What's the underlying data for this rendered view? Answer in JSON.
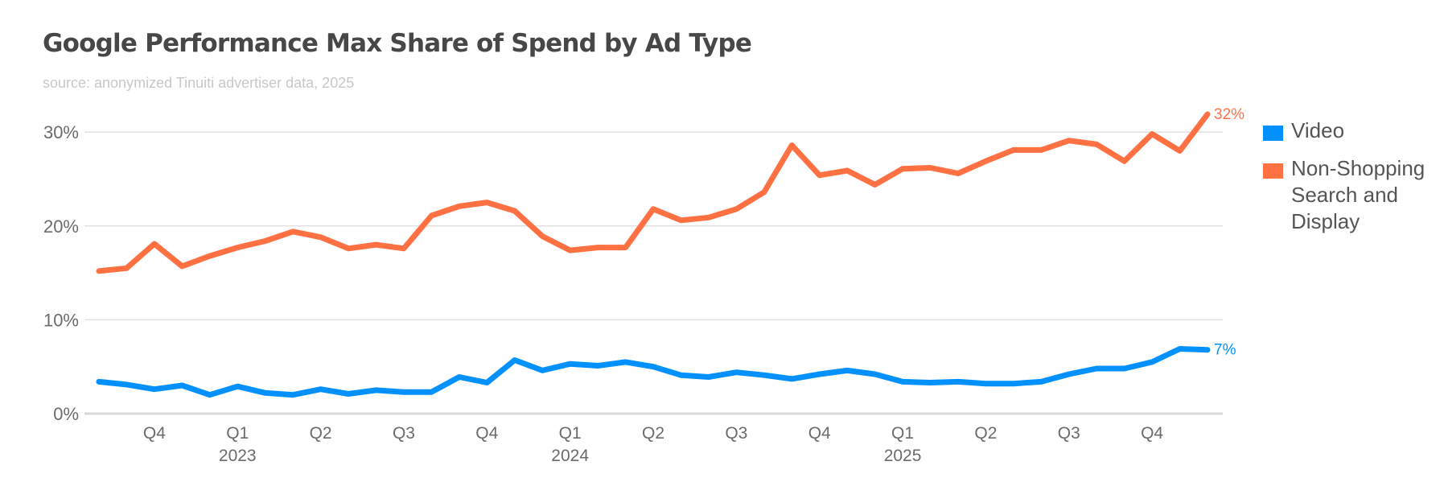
{
  "chart_data": {
    "type": "line",
    "title": "Google Performance Max Share of Spend by Ad Type",
    "subtitle": "source: anonymized Tinuiti advertiser data, 2025",
    "xlabel": "",
    "ylabel": "",
    "ylim": [
      0,
      32
    ],
    "yticks": [
      {
        "value": 0,
        "label": "0%"
      },
      {
        "value": 10,
        "label": "10%"
      },
      {
        "value": 20,
        "label": "20%"
      },
      {
        "value": 30,
        "label": "30%"
      }
    ],
    "grid": true,
    "legend_position": "right",
    "x_tick_labels": [
      {
        "index": 2,
        "quarter": "Q4",
        "year": ""
      },
      {
        "index": 5,
        "quarter": "Q1",
        "year": "2023"
      },
      {
        "index": 8,
        "quarter": "Q2",
        "year": ""
      },
      {
        "index": 11,
        "quarter": "Q3",
        "year": ""
      },
      {
        "index": 14,
        "quarter": "Q4",
        "year": ""
      },
      {
        "index": 17,
        "quarter": "Q1",
        "year": "2024"
      },
      {
        "index": 20,
        "quarter": "Q2",
        "year": ""
      },
      {
        "index": 23,
        "quarter": "Q3",
        "year": ""
      },
      {
        "index": 26,
        "quarter": "Q4",
        "year": ""
      },
      {
        "index": 29,
        "quarter": "Q1",
        "year": "2025"
      },
      {
        "index": 32,
        "quarter": "Q2",
        "year": ""
      },
      {
        "index": 35,
        "quarter": "Q3",
        "year": ""
      },
      {
        "index": 38,
        "quarter": "Q4",
        "year": ""
      }
    ],
    "series": [
      {
        "name": "Video",
        "color": "#0091FF",
        "end_label": "7%",
        "values": [
          3.4,
          3.1,
          2.6,
          3.0,
          2.0,
          2.9,
          2.2,
          2.0,
          2.6,
          2.1,
          2.5,
          2.3,
          2.3,
          3.9,
          3.3,
          5.7,
          4.6,
          5.3,
          5.1,
          5.5,
          5.0,
          4.1,
          3.9,
          4.4,
          4.1,
          3.7,
          4.2,
          4.6,
          4.2,
          3.4,
          3.3,
          3.4,
          3.2,
          3.2,
          3.4,
          4.2,
          4.8,
          4.8,
          5.5,
          6.9,
          6.8
        ]
      },
      {
        "name": "Non-Shopping Search and Display",
        "color": "#FF7043",
        "end_label": "32%",
        "values": [
          15.2,
          15.5,
          18.1,
          15.7,
          16.8,
          17.7,
          18.4,
          19.4,
          18.8,
          17.6,
          18.0,
          17.6,
          21.1,
          22.1,
          22.5,
          21.6,
          18.9,
          17.4,
          17.7,
          17.7,
          21.8,
          20.6,
          20.9,
          21.8,
          23.6,
          28.6,
          25.4,
          25.9,
          24.4,
          26.1,
          26.2,
          25.6,
          26.9,
          28.1,
          28.1,
          29.1,
          28.7,
          26.9,
          29.8,
          28.0,
          31.9
        ]
      }
    ]
  },
  "legend": {
    "items": [
      {
        "label": "Video",
        "color": "#0091FF"
      },
      {
        "label": "Non-Shopping Search and Display",
        "color": "#FF7043"
      }
    ]
  }
}
